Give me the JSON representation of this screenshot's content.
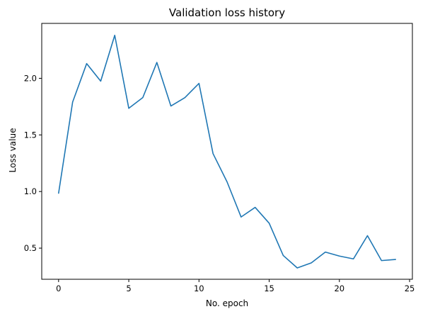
{
  "chart_data": {
    "type": "line",
    "title": "Validation loss history",
    "xlabel": "No. epoch",
    "ylabel": "Loss value",
    "xlim": [
      -1.2,
      25.2
    ],
    "ylim": [
      0.225,
      2.485
    ],
    "xticks": [
      0,
      5,
      10,
      15,
      20,
      25
    ],
    "yticks": [
      0.5,
      1.0,
      1.5,
      2.0
    ],
    "xtick_labels": [
      "0",
      "5",
      "10",
      "15",
      "20",
      "25"
    ],
    "ytick_labels": [
      "0.5",
      "1.0",
      "1.5",
      "2.0"
    ],
    "grid": false,
    "series": [
      {
        "color": "#1f77b4",
        "x": [
          0,
          1,
          2,
          3,
          4,
          5,
          6,
          7,
          8,
          9,
          10,
          11,
          12,
          13,
          14,
          15,
          16,
          17,
          18,
          19,
          20,
          21,
          22,
          23,
          24
        ],
        "y": [
          0.985,
          1.79,
          2.13,
          1.975,
          2.38,
          1.735,
          1.83,
          2.14,
          1.755,
          1.83,
          1.955,
          1.335,
          1.085,
          0.775,
          0.86,
          0.72,
          0.435,
          0.325,
          0.37,
          0.465,
          0.43,
          0.405,
          0.61,
          0.39,
          0.4
        ]
      }
    ]
  }
}
